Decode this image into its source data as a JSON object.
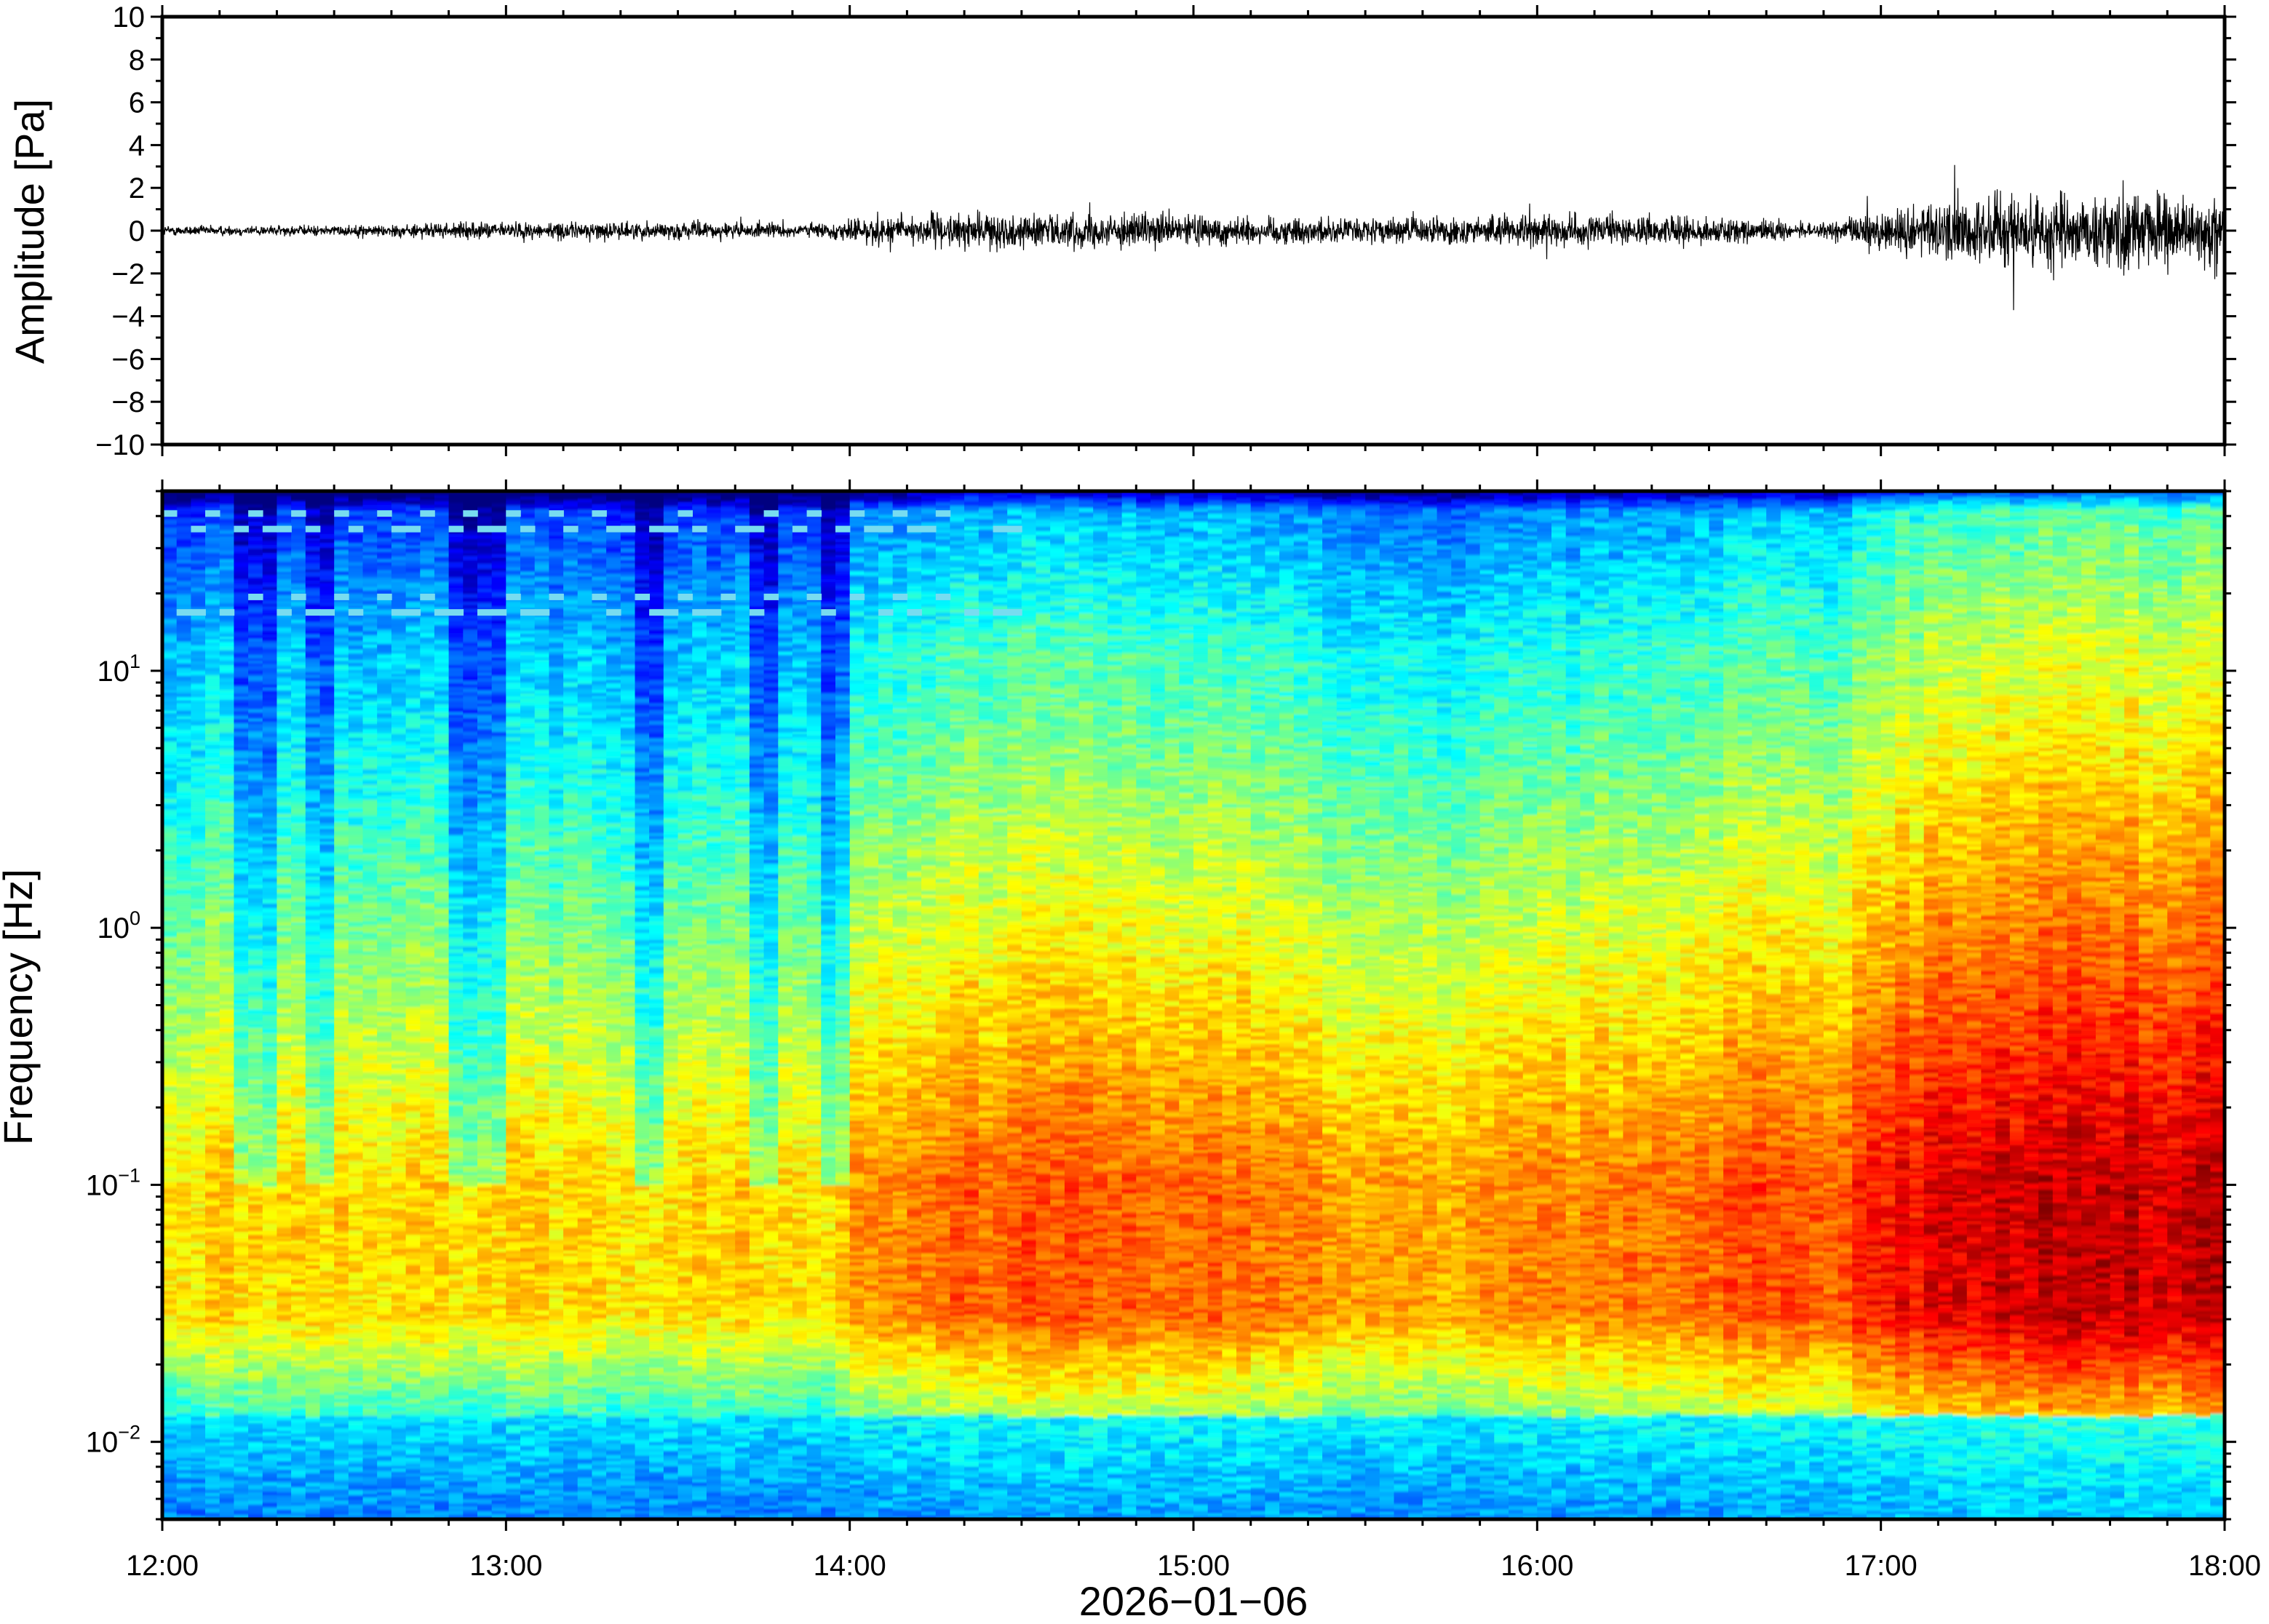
{
  "chart_data": [
    {
      "type": "line",
      "name": "waveform",
      "ylabel": "Amplitude [Pa]",
      "xlabel": "",
      "xlim": [
        "12:00",
        "18:00"
      ],
      "ylim": [
        -10,
        10
      ],
      "x_ticks": [
        "12:00",
        "13:00",
        "14:00",
        "15:00",
        "16:00",
        "17:00",
        "18:00"
      ],
      "y_ticks": [
        "10",
        "8",
        "6",
        "4",
        "2",
        "0",
        "−2",
        "−4",
        "−6",
        "−8",
        "−10"
      ],
      "y_tick_values": [
        10,
        8,
        6,
        4,
        2,
        0,
        -2,
        -4,
        -6,
        -8,
        -10
      ],
      "grid": false,
      "envelope": {
        "x": [
          "12:00",
          "12:30",
          "13:00",
          "13:30",
          "13:55",
          "14:05",
          "14:30",
          "15:00",
          "15:30",
          "16:00",
          "16:30",
          "16:50",
          "17:00",
          "17:15",
          "17:30",
          "17:45",
          "18:00"
        ],
        "y_amplitude": [
          0.3,
          0.3,
          0.5,
          0.5,
          0.4,
          0.9,
          1.0,
          0.9,
          0.7,
          0.9,
          0.8,
          0.4,
          1.2,
          2.0,
          2.4,
          2.2,
          1.8
        ]
      }
    },
    {
      "type": "heatmap",
      "name": "spectrogram",
      "ylabel": "Frequency [Hz]",
      "xlabel": "2026−01−06",
      "xlim": [
        "12:00",
        "18:00"
      ],
      "ylim": [
        0.005,
        50
      ],
      "yscale": "log",
      "x_ticks": [
        "12:00",
        "13:00",
        "14:00",
        "15:00",
        "16:00",
        "17:00",
        "18:00"
      ],
      "y_ticks": [
        {
          "value": 10,
          "base": "10",
          "exp": "1"
        },
        {
          "value": 1,
          "base": "10",
          "exp": "0"
        },
        {
          "value": 0.1,
          "base": "10",
          "exp": "−1"
        },
        {
          "value": 0.01,
          "base": "10",
          "exp": "−2"
        }
      ],
      "colormap": "jet",
      "grid": false,
      "tonal_lines_hz": [
        38,
        18
      ],
      "tonal_lines_end": "14:30"
    }
  ]
}
